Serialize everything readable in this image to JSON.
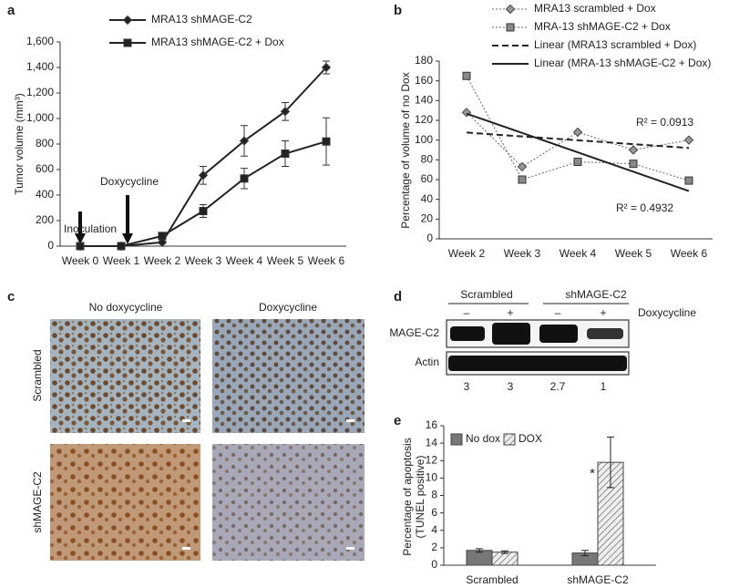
{
  "chart_data": [
    {
      "type": "line",
      "panel": "a",
      "ylabel": "Tumor volume (mm³)",
      "categories": [
        "Week 0",
        "Week 1",
        "Week 2",
        "Week 3",
        "Week 4",
        "Week 5",
        "Week 6"
      ],
      "series": [
        {
          "name": "MRA13 shMAGE-C2",
          "color": "#222",
          "marker": "diamond",
          "style": "solid",
          "values": [
            0,
            0,
            30,
            555,
            825,
            1055,
            1400
          ],
          "errors": [
            0,
            0,
            10,
            70,
            120,
            70,
            50
          ]
        },
        {
          "name": "MRA13 shMAGE-C2 + Dox",
          "color": "#222",
          "marker": "square",
          "style": "solid",
          "values": [
            0,
            0,
            80,
            275,
            530,
            725,
            820
          ],
          "errors": [
            0,
            0,
            20,
            50,
            80,
            100,
            185
          ]
        }
      ],
      "ylim": [
        0,
        1600
      ],
      "yticks": [
        0,
        200,
        400,
        600,
        800,
        {
          "value": 1000,
          "label": "1,000"
        },
        {
          "value": 1200,
          "label": "1,200"
        },
        {
          "value": 1400,
          "label": "1,400"
        },
        {
          "value": 1600,
          "label": "1,600"
        }
      ],
      "annotations": [
        "Inoculation",
        "Doxycycline"
      ]
    },
    {
      "type": "line",
      "panel": "b",
      "ylabel": "Percentage of volume of no Dox",
      "categories": [
        "Week 2",
        "Week 3",
        "Week 4",
        "Week 5",
        "Week 6"
      ],
      "series": [
        {
          "name": "MRA13 scrambled + Dox",
          "color": "#999",
          "marker": "diamond",
          "style": "dotted",
          "values": [
            128,
            73,
            108,
            90,
            100
          ]
        },
        {
          "name": "MRA-13 shMAGE-C2 + Dox",
          "color": "#888",
          "marker": "square",
          "style": "dotted",
          "values": [
            165,
            60,
            78,
            76,
            59
          ]
        },
        {
          "name": "Linear (MRA13 scrambled + Dox)",
          "color": "#222",
          "marker": null,
          "style": "dashed",
          "values": [
            107.6,
            103.7,
            99.8,
            95.9,
            92.0
          ]
        },
        {
          "name": "Linear (MRA-13 shMAGE-C2 + Dox)",
          "color": "#222",
          "marker": null,
          "style": "solid",
          "values": [
            126.8,
            107.2,
            87.6,
            68.0,
            48.4
          ]
        }
      ],
      "ylim": [
        0,
        180
      ],
      "yticks": [
        0,
        20,
        40,
        60,
        80,
        100,
        120,
        140,
        160,
        180
      ],
      "annotations": [
        "R² = 0.0913",
        "R² = 0.4932"
      ]
    },
    {
      "type": "bar",
      "panel": "e",
      "ylabel": [
        "Percentage of apoptosis",
        "(TUNEL positive)"
      ],
      "categories": [
        "Scrambled",
        "shMAGE-C2"
      ],
      "series": [
        {
          "name": "No dox",
          "color": "#777",
          "pattern": null,
          "values": [
            1.7,
            1.4
          ],
          "errors": [
            0.2,
            0.3
          ]
        },
        {
          "name": "DOX",
          "color": "#ddd",
          "pattern": "hatch",
          "values": [
            1.5,
            11.8
          ],
          "errors": [
            0.15,
            2.9
          ]
        }
      ],
      "ylim": [
        0,
        16
      ],
      "yticks": [
        0,
        2,
        4,
        6,
        8,
        10,
        12,
        14,
        16
      ],
      "annotations": [
        "*"
      ]
    }
  ],
  "panel_c": {
    "panel": "c",
    "columns": [
      "No doxycycline",
      "Doxycycline"
    ],
    "rows": [
      "Scrambled",
      "shMAGE-C2"
    ]
  },
  "panel_d": {
    "panel": "d",
    "groups": [
      "Scrambled",
      "shMAGE-C2"
    ],
    "lanes": [
      "–",
      "+",
      "–",
      "+"
    ],
    "treatment": "Doxycycline",
    "blots": [
      "MAGE-C2",
      "Actin"
    ],
    "ratios": [
      3,
      3,
      2.7,
      1
    ]
  }
}
